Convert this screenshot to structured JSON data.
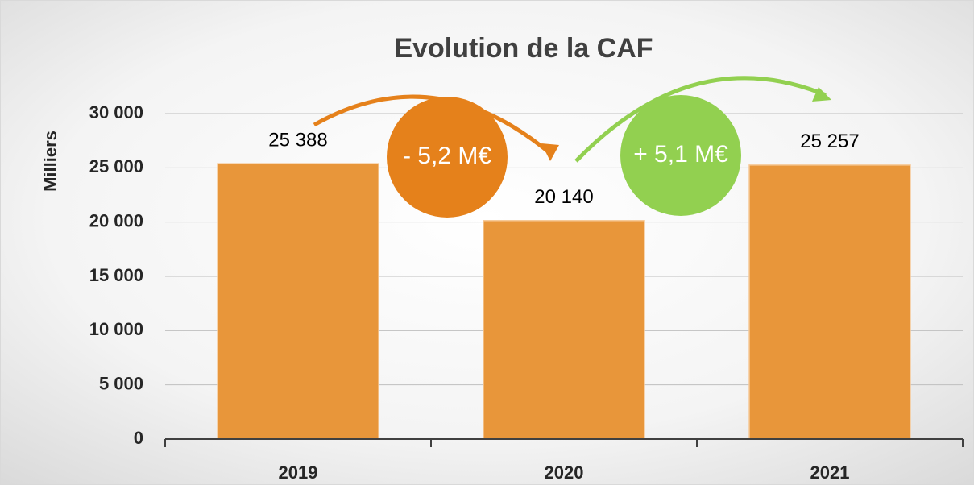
{
  "chart_data": {
    "type": "bar",
    "title": "Evolution de la CAF",
    "y_label": "Milliers",
    "categories": [
      "2019",
      "2020",
      "2021"
    ],
    "values": [
      25388,
      20140,
      25257
    ],
    "value_labels": [
      "25 388",
      "20 140",
      "25 257"
    ],
    "color": "#e8963a",
    "ylim": [
      0,
      30000
    ],
    "yticks": [
      0,
      {
        "value": 5000,
        "label": "5 000"
      },
      {
        "value": 10000,
        "label": "10 000"
      },
      {
        "value": 15000,
        "label": "15 000"
      },
      {
        "value": 20000,
        "label": "20 000"
      },
      {
        "value": 25000,
        "label": "25 000"
      },
      {
        "value": 30000,
        "label": "30 000"
      }
    ],
    "grid": true,
    "annotations": [
      {
        "text": "- 5,2 M€",
        "color": "#e5811b"
      },
      {
        "text": "+ 5,1 M€",
        "color": "#92d050"
      }
    ]
  }
}
